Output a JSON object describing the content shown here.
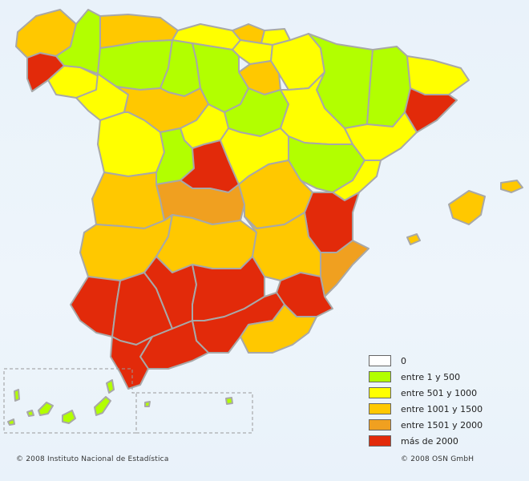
{
  "colors": {
    "zero": "#ffffff",
    "range_1_500": "#b2ff00",
    "range_501_1000": "#ffff00",
    "range_1001_1500": "#ffc800",
    "range_1501_2000": "#f0a020",
    "range_over_2000": "#e22a0a",
    "border": "#a8a8a8",
    "background": "#eaf3fa"
  },
  "legend": {
    "items": [
      {
        "label": "0",
        "color": "#ffffff"
      },
      {
        "label": "entre 1 y 500",
        "color": "#b2ff00"
      },
      {
        "label": "entre 501 y 1000",
        "color": "#ffff00"
      },
      {
        "label": "entre 1001 y 1500",
        "color": "#ffc800"
      },
      {
        "label": "entre 1501 y 2000",
        "color": "#f0a020"
      },
      {
        "label": "más de 2000",
        "color": "#e22a0a"
      }
    ]
  },
  "footer": {
    "copyright_left": "© 2008 Instituto Nacional de Estadística",
    "copyright_right": "© 2008 OSN GmbH"
  }
}
